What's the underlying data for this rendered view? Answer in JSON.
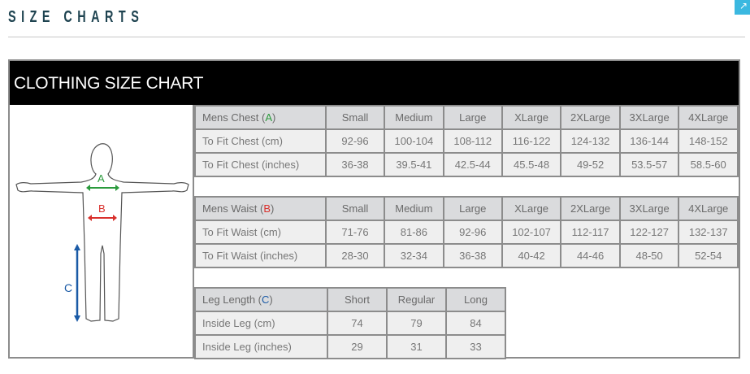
{
  "page_title": "SIZE CHARTS",
  "chart_title": "CLOTHING SIZE CHART",
  "figure": {
    "labels": [
      "A",
      "B",
      "C"
    ],
    "colors": {
      "A": "#2a9a3c",
      "B": "#d9302c",
      "C": "#1a5aa6"
    }
  },
  "chest": {
    "header_label": "Mens Chest (",
    "header_letter": "A",
    "header_close": ")",
    "sizes": [
      "Small",
      "Medium",
      "Large",
      "XLarge",
      "2XLarge",
      "3XLarge",
      "4XLarge"
    ],
    "rows": [
      {
        "label": "To Fit Chest (cm)",
        "values": [
          "92-96",
          "100-104",
          "108-112",
          "116-122",
          "124-132",
          "136-144",
          "148-152"
        ]
      },
      {
        "label": "To Fit Chest (inches)",
        "values": [
          "36-38",
          "39.5-41",
          "42.5-44",
          "45.5-48",
          "49-52",
          "53.5-57",
          "58.5-60"
        ]
      }
    ]
  },
  "waist": {
    "header_label": "Mens Waist (",
    "header_letter": "B",
    "header_close": ")",
    "sizes": [
      "Small",
      "Medium",
      "Large",
      "XLarge",
      "2XLarge",
      "3XLarge",
      "4XLarge"
    ],
    "rows": [
      {
        "label": "To Fit Waist (cm)",
        "values": [
          "71-76",
          "81-86",
          "92-96",
          "102-107",
          "112-117",
          "122-127",
          "132-137"
        ]
      },
      {
        "label": "To Fit Waist (inches)",
        "values": [
          "28-30",
          "32-34",
          "36-38",
          "40-42",
          "44-46",
          "48-50",
          "52-54"
        ]
      }
    ]
  },
  "leg": {
    "header_label": "Leg Length (",
    "header_letter": "C",
    "header_close": ")",
    "sizes": [
      "Short",
      "Regular",
      "Long"
    ],
    "rows": [
      {
        "label": "Inside Leg (cm)",
        "values": [
          "74",
          "79",
          "84"
        ]
      },
      {
        "label": "Inside Leg (inches)",
        "values": [
          "29",
          "31",
          "33"
        ]
      }
    ]
  }
}
